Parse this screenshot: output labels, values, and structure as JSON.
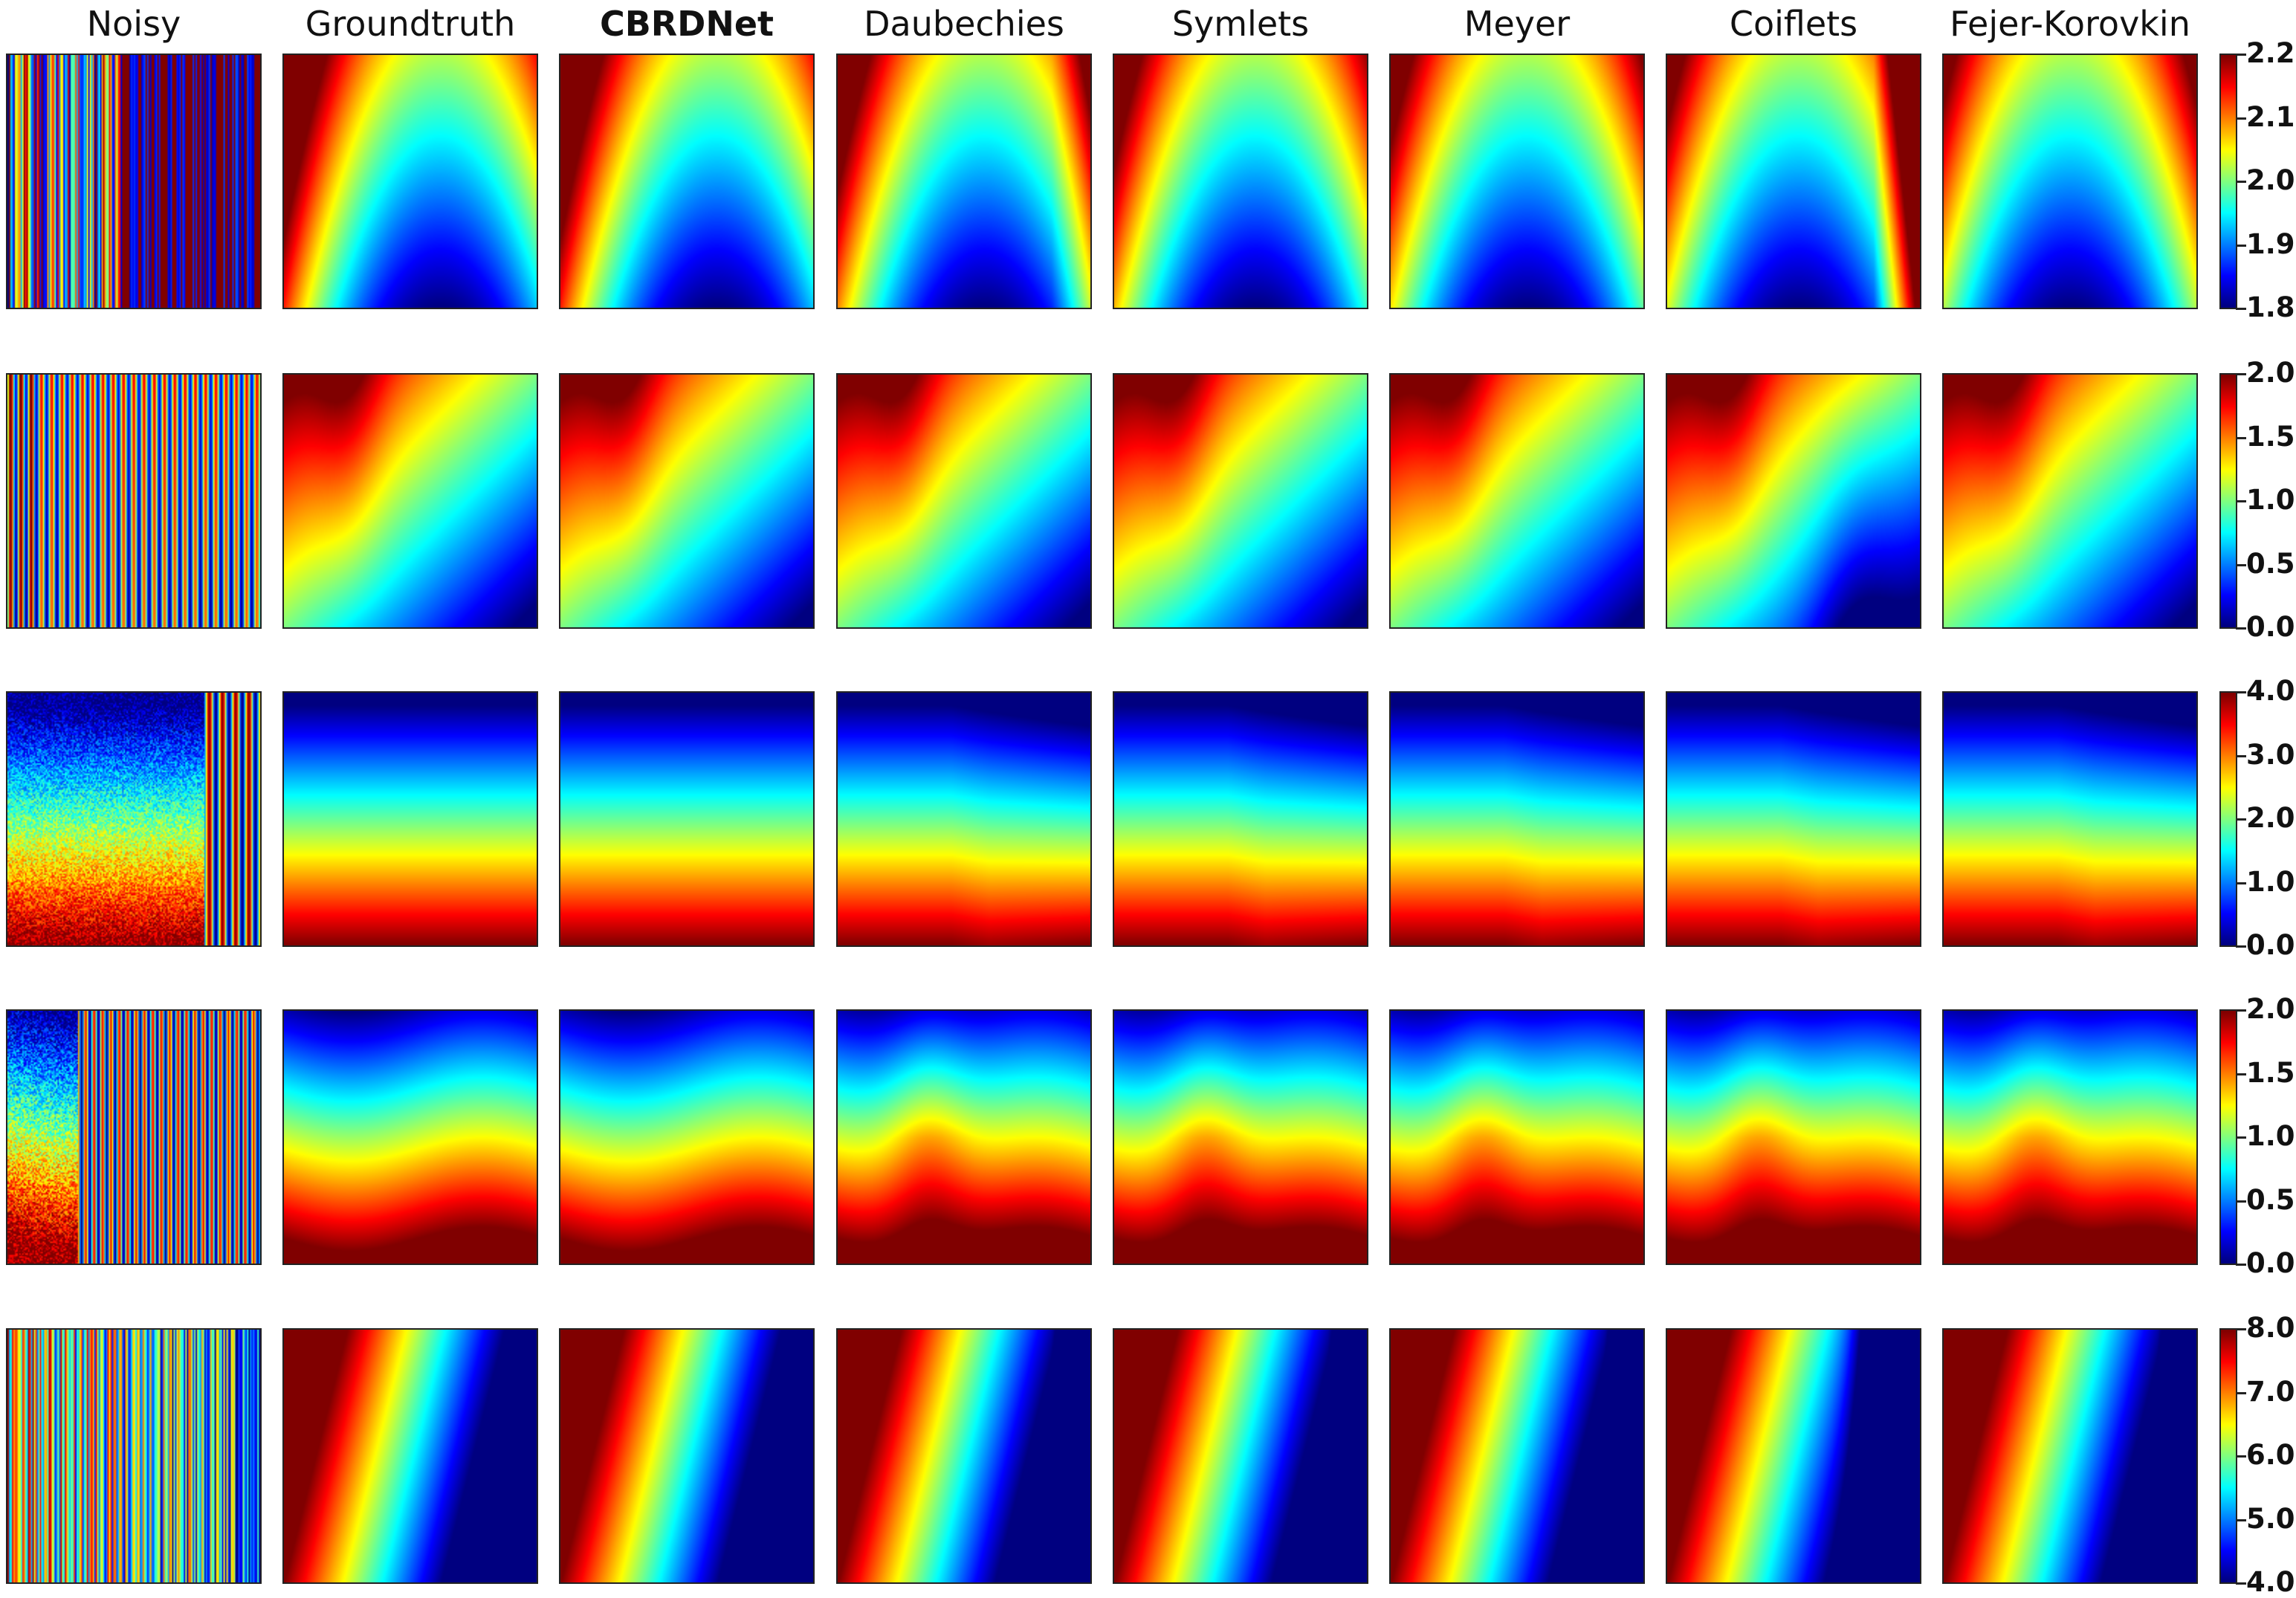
{
  "chart_data": {
    "type": "heatmap",
    "colormap": "jet",
    "columns": [
      "Noisy",
      "Groundtruth",
      "CBRDNet",
      "Daubechies",
      "Symlets",
      "Meyer",
      "Coiflets",
      "Fejer-Korovkin"
    ],
    "bold_column": "CBRDNet",
    "rows": [
      {
        "colorbar": {
          "min": 1.8,
          "max": 2.2,
          "ticks": [
            "2.2",
            "2.1",
            "2.0",
            "1.9",
            "1.8"
          ]
        }
      },
      {
        "colorbar": {
          "min": 0.0,
          "max": 2.0,
          "ticks": [
            "2.0",
            "1.5",
            "1.0",
            "0.5",
            "0.0"
          ]
        }
      },
      {
        "colorbar": {
          "min": 0.0,
          "max": 4.0,
          "ticks": [
            "4.0",
            "3.0",
            "2.0",
            "1.0",
            "0.0"
          ]
        }
      },
      {
        "colorbar": {
          "min": 0.0,
          "max": 2.0,
          "ticks": [
            "2.0",
            "1.5",
            "1.0",
            "0.5",
            "0.0"
          ]
        }
      },
      {
        "colorbar": {
          "min": 4.0,
          "max": 8.0,
          "ticks": [
            "8.0",
            "7.0",
            "6.0",
            "5.0",
            "4.0"
          ]
        }
      }
    ]
  }
}
